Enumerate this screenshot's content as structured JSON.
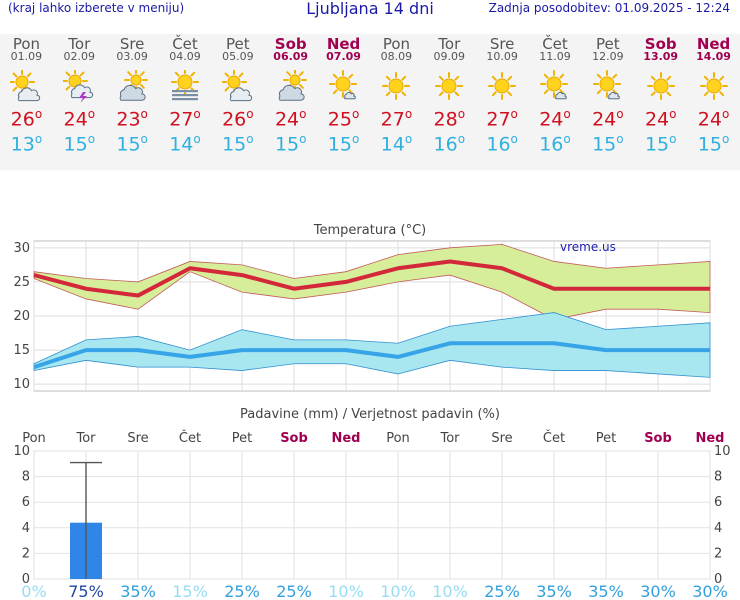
{
  "header": {
    "left_note": "(kraj lahko izberete v meniju)",
    "title": "Ljubljana 14 dni",
    "updated": "Zadnja posodobitev: 01.09.2025 - 12:24"
  },
  "days": [
    {
      "name": "Pon",
      "date": "01.09",
      "weekend": false,
      "icon": "sun-cloud-icon",
      "tmax": "26",
      "tmin": "13",
      "deg": "o"
    },
    {
      "name": "Tor",
      "date": "02.09",
      "weekend": false,
      "icon": "sun-cloud-storm-icon",
      "tmax": "24",
      "tmin": "15",
      "deg": "o"
    },
    {
      "name": "Sre",
      "date": "03.09",
      "weekend": false,
      "icon": "cloud-sun-icon",
      "tmax": "23",
      "tmin": "15",
      "deg": "o"
    },
    {
      "name": "Čet",
      "date": "04.09",
      "weekend": false,
      "icon": "sun-fog-icon",
      "tmax": "27",
      "tmin": "14",
      "deg": "o"
    },
    {
      "name": "Pet",
      "date": "05.09",
      "weekend": false,
      "icon": "sun-cloud-icon",
      "tmax": "26",
      "tmin": "15",
      "deg": "o"
    },
    {
      "name": "Sob",
      "date": "06.09",
      "weekend": true,
      "icon": "cloud-sun-icon",
      "tmax": "24",
      "tmin": "15",
      "deg": "o"
    },
    {
      "name": "Ned",
      "date": "07.09",
      "weekend": true,
      "icon": "sun-small-cloud-icon",
      "tmax": "25",
      "tmin": "15",
      "deg": "o"
    },
    {
      "name": "Pon",
      "date": "08.09",
      "weekend": false,
      "icon": "sun-icon",
      "tmax": "27",
      "tmin": "14",
      "deg": "o"
    },
    {
      "name": "Tor",
      "date": "09.09",
      "weekend": false,
      "icon": "sun-icon",
      "tmax": "28",
      "tmin": "16",
      "deg": "o"
    },
    {
      "name": "Sre",
      "date": "10.09",
      "weekend": false,
      "icon": "sun-icon",
      "tmax": "27",
      "tmin": "16",
      "deg": "o"
    },
    {
      "name": "Čet",
      "date": "11.09",
      "weekend": false,
      "icon": "sun-small-cloud-icon",
      "tmax": "24",
      "tmin": "16",
      "deg": "o"
    },
    {
      "name": "Pet",
      "date": "12.09",
      "weekend": false,
      "icon": "sun-small-cloud-icon",
      "tmax": "24",
      "tmin": "15",
      "deg": "o"
    },
    {
      "name": "Sob",
      "date": "13.09",
      "weekend": true,
      "icon": "sun-icon",
      "tmax": "24",
      "tmin": "15",
      "deg": "o"
    },
    {
      "name": "Ned",
      "date": "14.09",
      "weekend": true,
      "icon": "sun-icon",
      "tmax": "24",
      "tmin": "15",
      "deg": "o"
    }
  ],
  "colors": {
    "header_text": "#1a1aa6",
    "weekend": "#a00050",
    "tmax": "#d01020",
    "tmin": "#30b0e0",
    "max_band": "#d6ee9a",
    "min_band": "#a8e6f0",
    "max_line": "#d2283a",
    "min_line": "#36a4e6",
    "bar": "#2f86e6",
    "prob_high": "#2446a0",
    "prob_mid": "#32a0dc",
    "prob_low": "#98dcf2"
  },
  "chart_data": [
    {
      "type": "area",
      "title": "Temperatura (°C)",
      "watermark": "vreme.us",
      "categories": [
        "Pon",
        "Tor",
        "Sre",
        "Čet",
        "Pet",
        "Sob",
        "Ned",
        "Pon",
        "Tor",
        "Sre",
        "Čet",
        "Pet",
        "Sob",
        "Ned"
      ],
      "ylim": [
        9,
        31
      ],
      "yticks": [
        10,
        15,
        20,
        25,
        30
      ],
      "grid": true,
      "series": [
        {
          "name": "max_high",
          "values": [
            26.5,
            25.5,
            25,
            28,
            27.5,
            25.5,
            26.5,
            29,
            30,
            30.5,
            28,
            27,
            27.5,
            28
          ]
        },
        {
          "name": "max",
          "values": [
            26,
            24,
            23,
            27,
            26,
            24,
            25,
            27,
            28,
            27,
            24,
            24,
            24,
            24
          ]
        },
        {
          "name": "max_low",
          "values": [
            25.5,
            22.5,
            21,
            26.5,
            23.5,
            22.5,
            23.5,
            25,
            26,
            23.5,
            19.5,
            21,
            21,
            20.5
          ]
        },
        {
          "name": "min_high",
          "values": [
            13,
            16.5,
            17,
            15,
            18,
            16.5,
            16.5,
            16,
            18.5,
            19.5,
            20.5,
            18,
            18.5,
            19
          ]
        },
        {
          "name": "min",
          "values": [
            12.5,
            15,
            15,
            14,
            15,
            15,
            15,
            14,
            16,
            16,
            16,
            15,
            15,
            15
          ]
        },
        {
          "name": "min_low",
          "values": [
            12,
            13.5,
            12.5,
            12.5,
            12,
            13,
            13,
            11.5,
            13.5,
            12.5,
            12,
            12,
            11.5,
            11
          ]
        }
      ]
    },
    {
      "type": "bar",
      "title": "Padavine (mm) / Verjetnost padavin (%)",
      "categories": [
        "Pon",
        "Tor",
        "Sre",
        "Čet",
        "Pet",
        "Sob",
        "Ned",
        "Pon",
        "Tor",
        "Sre",
        "Čet",
        "Pet",
        "Sob",
        "Ned"
      ],
      "values": [
        0,
        4.4,
        0,
        0,
        0,
        0,
        0,
        0,
        0,
        0,
        0,
        0,
        0,
        0
      ],
      "error_high": [
        0,
        9.1,
        0,
        0,
        0,
        0,
        0,
        0,
        0,
        0,
        0,
        0,
        0,
        0
      ],
      "probabilities": [
        "0%",
        "75%",
        "35%",
        "15%",
        "25%",
        "25%",
        "10%",
        "10%",
        "10%",
        "25%",
        "35%",
        "35%",
        "30%",
        "30%"
      ],
      "ylim": [
        0,
        10
      ],
      "yticks": [
        0,
        2,
        4,
        6,
        8,
        10
      ],
      "grid": true
    }
  ]
}
